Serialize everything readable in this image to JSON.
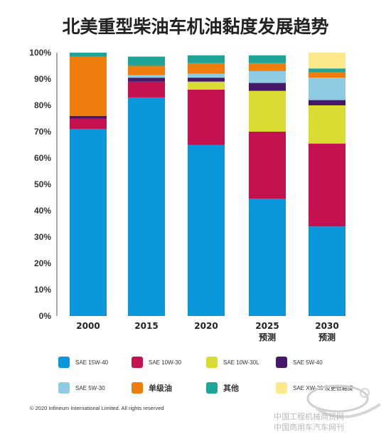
{
  "chart_data": {
    "type": "bar",
    "stacked": true,
    "title": "北美重型柴油车机油黏度发展趋势",
    "categories": [
      "2000",
      "2015",
      "2020",
      "2025",
      "2030"
    ],
    "category_sublabels": [
      "",
      "",
      "",
      "预测",
      "预测"
    ],
    "ylim": [
      0,
      100
    ],
    "yticks": [
      "0%",
      "10%",
      "20%",
      "30%",
      "40%",
      "50%",
      "60%",
      "70%",
      "80%",
      "90%",
      "100%"
    ],
    "grid": false,
    "legend_position": "bottom",
    "series": [
      {
        "name": "SAE 15W-40",
        "color": "#0b97dc",
        "values": [
          71,
          83,
          65,
          44.5,
          34
        ]
      },
      {
        "name": "SAE 10W-30",
        "color": "#c4114f",
        "values": [
          4,
          6,
          21,
          25.5,
          31.5
        ]
      },
      {
        "name": "SAE 10W-30L",
        "color": "#d9dd33",
        "values": [
          0,
          0,
          3,
          15.5,
          14.5
        ]
      },
      {
        "name": "SAE 5W-40",
        "color": "#46186a",
        "values": [
          1,
          1.5,
          1.5,
          3,
          2
        ]
      },
      {
        "name": "SAE 5W-30",
        "color": "#8fcce4",
        "values": [
          0,
          1,
          1.5,
          4.5,
          8.5
        ]
      },
      {
        "name": "单级油",
        "color": "#ee7d0e",
        "values": [
          22.5,
          3.5,
          4,
          3,
          2
        ]
      },
      {
        "name": "其他",
        "color": "#1fa598",
        "values": [
          1.5,
          3.5,
          3,
          3,
          1.5
        ]
      },
      {
        "name": "SAE XW-20 及更低黏度",
        "color": "#fde98b",
        "values": [
          0,
          0,
          0,
          0,
          6
        ]
      }
    ]
  },
  "footer": {
    "copyright": "© 2020 Infineum International Limited. All rights reserved",
    "watermark_line1": "中国工程机械商贸网",
    "watermark_line2": "中国商用车汽车网刊"
  }
}
